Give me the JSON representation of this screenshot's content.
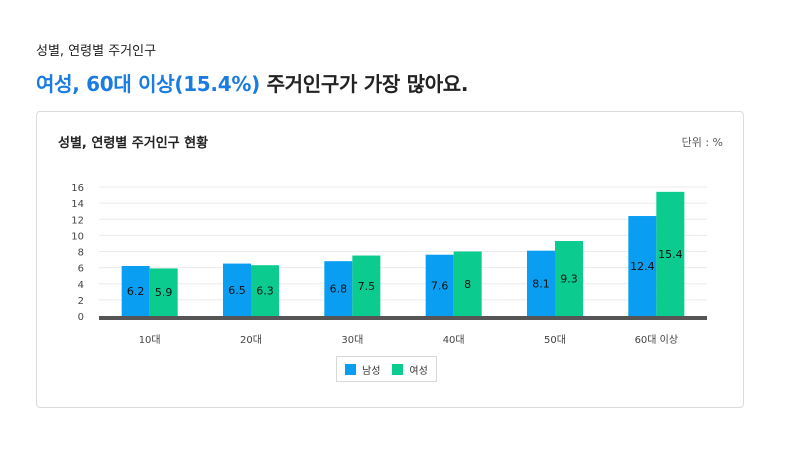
{
  "header": {
    "eyebrow": "성별, 연령별 주거인구",
    "headline_highlight": "여성, 60대 이상(15.4%)",
    "headline_rest": " 주거인구가 가장 많아요."
  },
  "card": {
    "title": "성별, 연령별 주거인구 현황",
    "unit": "단위 : %"
  },
  "chart_data": {
    "type": "bar",
    "title": "성별, 연령별 주거인구 현황",
    "categories": [
      "10대",
      "20대",
      "30대",
      "40대",
      "50대",
      "60대 이상"
    ],
    "series": [
      {
        "name": "남성",
        "color": "#0a9ef2",
        "values": [
          6.2,
          6.5,
          6.8,
          7.6,
          8.1,
          12.4
        ]
      },
      {
        "name": "여성",
        "color": "#0ccb8e",
        "values": [
          5.9,
          6.3,
          7.5,
          8,
          9.3,
          15.4
        ]
      }
    ],
    "ylim": [
      0,
      16
    ],
    "yticks": [
      "0",
      "2",
      "4",
      "6",
      "8",
      "10",
      "12",
      "14",
      "16"
    ],
    "grid": true,
    "legend": "bottom-center"
  }
}
